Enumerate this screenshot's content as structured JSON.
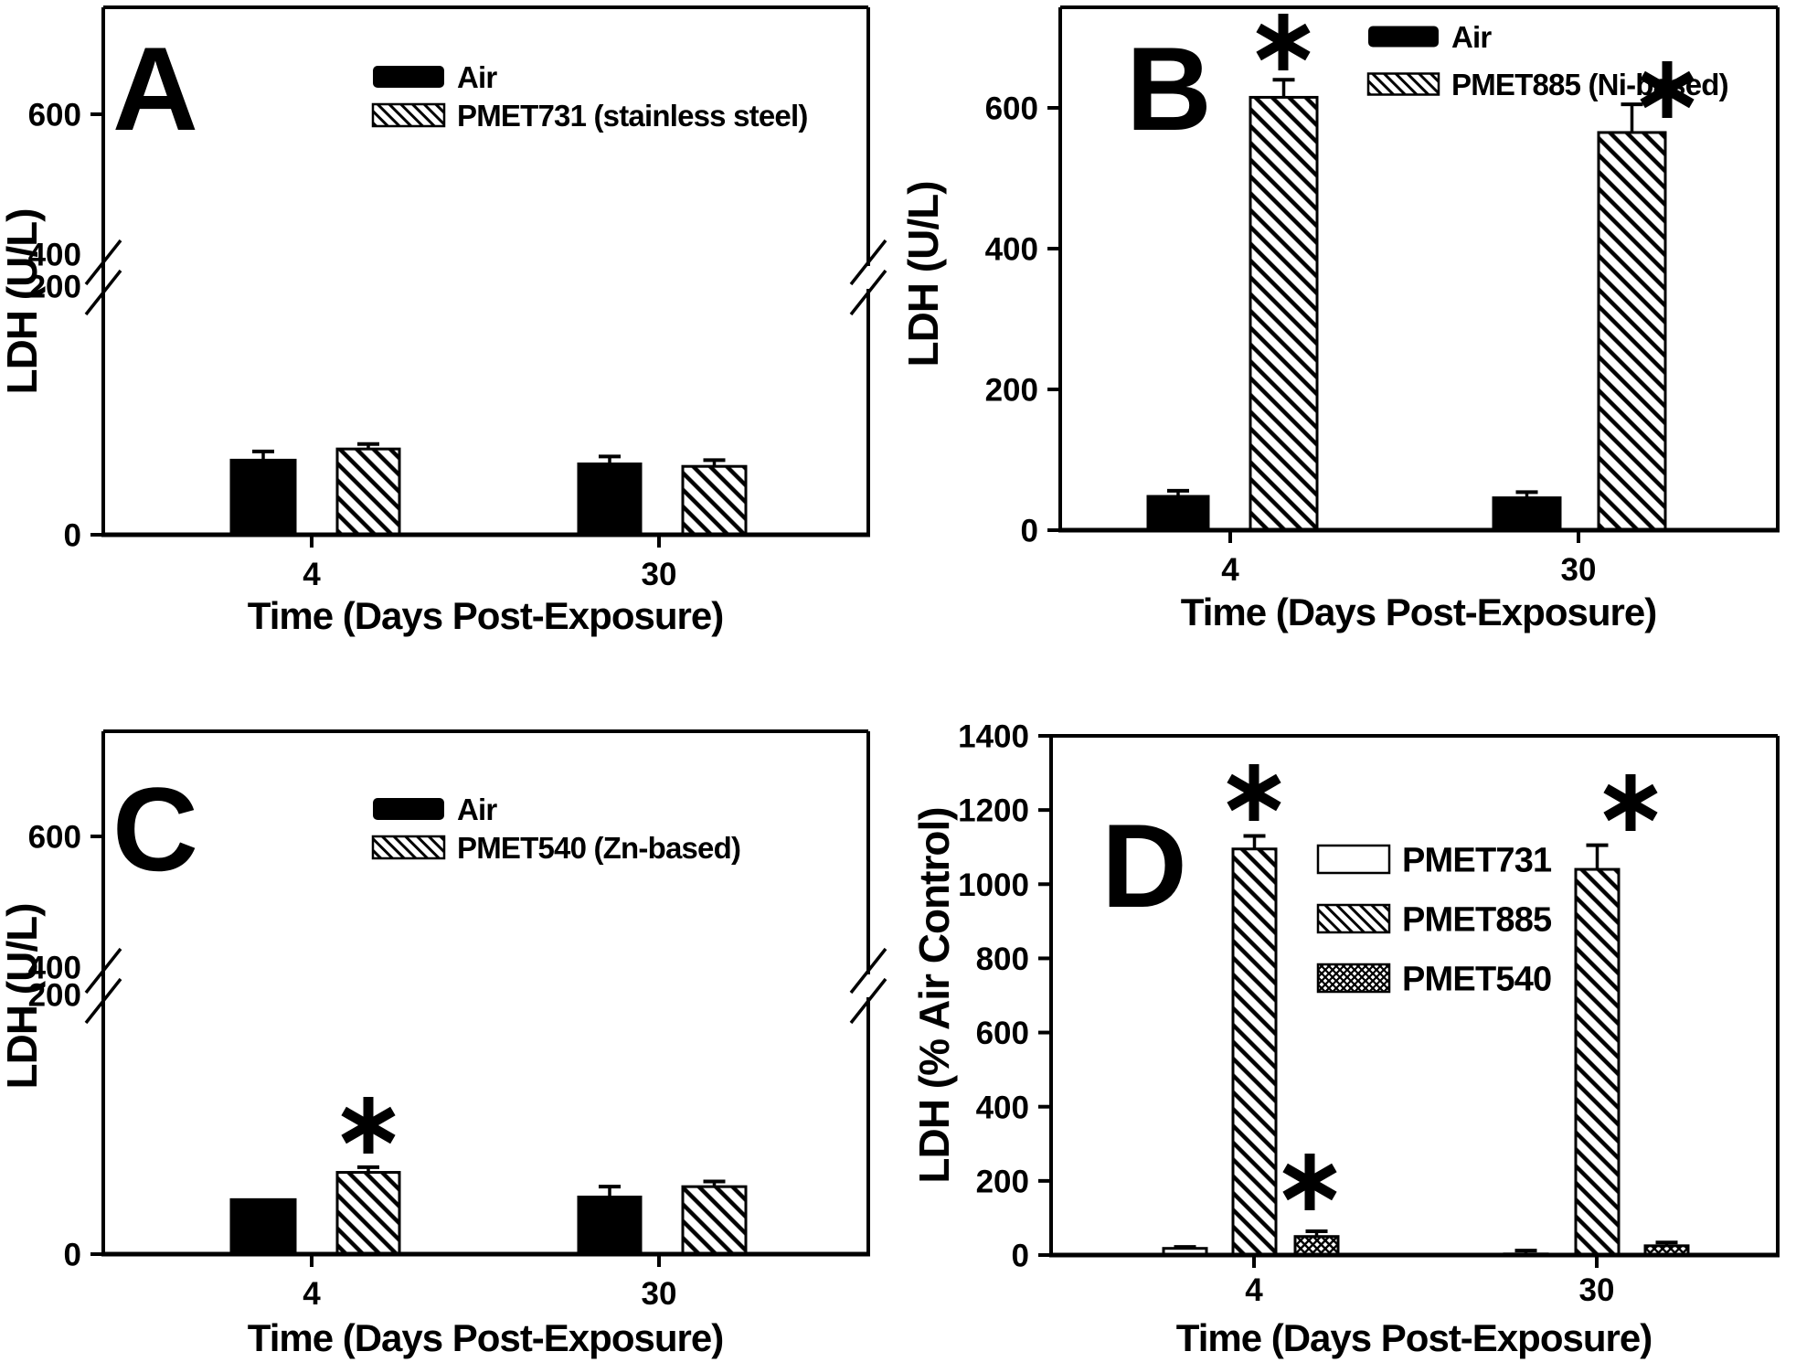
{
  "figure": {
    "background": "#ffffff",
    "ink": "#000000",
    "significance_marker": "*"
  },
  "chart_data": [
    {
      "id": "A",
      "type": "bar",
      "panel_label": "A",
      "title": "",
      "ylabel": "LDH (U/L)",
      "xlabel": "Time (Days Post-Exposure)",
      "categories": [
        "4",
        "30"
      ],
      "yticks": [
        600,
        400,
        200,
        0
      ],
      "y_break": {
        "below": 200,
        "above": 400
      },
      "ylim": [
        0,
        750
      ],
      "grid": false,
      "legend_position": "top-center",
      "series": [
        {
          "name": "Air",
          "pattern": "solid",
          "values": [
            60,
            57
          ],
          "errors": [
            7,
            6
          ],
          "sig": [
            false,
            false
          ]
        },
        {
          "name": "PMET731 (stainless steel)",
          "pattern": "hatch",
          "values": [
            69,
            55
          ],
          "errors": [
            4,
            5
          ],
          "sig": [
            false,
            false
          ]
        }
      ]
    },
    {
      "id": "B",
      "type": "bar",
      "panel_label": "B",
      "title": "",
      "ylabel": "LDH (U/L)",
      "xlabel": "Time (Days Post-Exposure)",
      "categories": [
        "4",
        "30"
      ],
      "yticks": [
        600,
        400,
        200,
        0
      ],
      "ylim": [
        0,
        740
      ],
      "grid": false,
      "legend_position": "top-center",
      "series": [
        {
          "name": "Air",
          "pattern": "solid",
          "values": [
            48,
            46
          ],
          "errors": [
            8,
            8
          ],
          "sig": [
            false,
            false
          ]
        },
        {
          "name": "PMET885 (Ni-based)",
          "pattern": "hatch",
          "values": [
            615,
            565
          ],
          "errors": [
            25,
            40
          ],
          "sig": [
            true,
            true
          ]
        }
      ]
    },
    {
      "id": "C",
      "type": "bar",
      "panel_label": "C",
      "title": "",
      "ylabel": "LDH (U/L)",
      "xlabel": "Time (Days Post-Exposure)",
      "categories": [
        "4",
        "30"
      ],
      "yticks": [
        600,
        400,
        200,
        0
      ],
      "y_break": {
        "below": 200,
        "above": 400
      },
      "ylim": [
        0,
        750
      ],
      "grid": false,
      "legend_position": "top-center",
      "series": [
        {
          "name": "Air",
          "pattern": "solid",
          "values": [
            42,
            44
          ],
          "errors": [
            0,
            8
          ],
          "sig": [
            false,
            false
          ]
        },
        {
          "name": "PMET540 (Zn-based)",
          "pattern": "hatch",
          "values": [
            63,
            52
          ],
          "errors": [
            4,
            4
          ],
          "sig": [
            true,
            false
          ]
        }
      ]
    },
    {
      "id": "D",
      "type": "bar",
      "panel_label": "D",
      "title": "",
      "ylabel": "LDH (% Air Control)",
      "xlabel": "Time (Days Post-Exposure)",
      "categories": [
        "4",
        "30"
      ],
      "yticks": [
        1400,
        1200,
        1000,
        800,
        600,
        400,
        200,
        0
      ],
      "ylim": [
        0,
        1400
      ],
      "grid": false,
      "legend_position": "top-center",
      "series": [
        {
          "name": "PMET731",
          "pattern": "open",
          "values": [
            18,
            3
          ],
          "errors": [
            4,
            9
          ],
          "sig": [
            false,
            false
          ]
        },
        {
          "name": "PMET885",
          "pattern": "hatch",
          "values": [
            1095,
            1040
          ],
          "errors": [
            35,
            65
          ],
          "sig": [
            true,
            true
          ]
        },
        {
          "name": "PMET540",
          "pattern": "cross",
          "values": [
            50,
            25
          ],
          "errors": [
            14,
            9
          ],
          "sig": [
            true,
            false
          ]
        }
      ]
    }
  ]
}
